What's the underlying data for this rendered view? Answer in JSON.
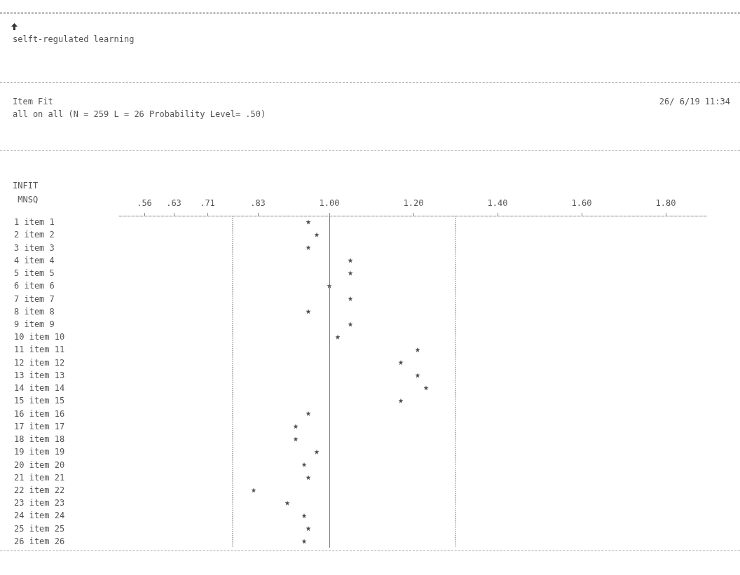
{
  "chart_data": {
    "type": "scatter",
    "title": "selft-regulated learning",
    "subtitle": "Item Fit",
    "annotations": [
      "all on all (N = 259 L = 26 Probability Level= .50)",
      "26/ 6/19 11:34"
    ],
    "xlabel": "INFIT MNSQ",
    "orientation": "horizontal",
    "categories": [
      "1 item 1",
      "2 item 2",
      "3 item 3",
      "4 item 4",
      "5 item 5",
      "6 item 6",
      "7 item 7",
      "8 item 8",
      "9 item 9",
      "10 item 10",
      "11 item 11",
      "12 item 12",
      "13 item 13",
      "14 item 14",
      "15 item 15",
      "16 item 16",
      "17 item 17",
      "18 item 18",
      "19 item 19",
      "20 item 20",
      "21 item 21",
      "22 item 22",
      "23 item 23",
      "24 item 24",
      "25 item 25",
      "26 item 26"
    ],
    "series": [
      {
        "color": "#222222",
        "values": [
          0.95,
          0.97,
          0.95,
          1.05,
          1.05,
          1.0,
          1.05,
          0.95,
          1.05,
          1.02,
          1.21,
          1.17,
          1.21,
          1.23,
          1.17,
          0.95,
          0.92,
          0.92,
          0.97,
          0.94,
          0.95,
          0.82,
          0.9,
          0.94,
          0.95,
          0.94
        ]
      }
    ],
    "xlim": [
      0.5,
      1.9
    ],
    "xticks": [
      {
        "value": 0.56,
        "label": ".56"
      },
      {
        "value": 0.63,
        "label": ".63"
      },
      {
        "value": 0.71,
        "label": ".71"
      },
      {
        "value": 0.83,
        "label": ".83"
      },
      {
        "value": 1.0,
        "label": "1.00"
      },
      {
        "value": 1.2,
        "label": "1.20"
      },
      {
        "value": 1.4,
        "label": "1.40"
      },
      {
        "value": 1.6,
        "label": "1.60"
      },
      {
        "value": 1.8,
        "label": "1.80"
      }
    ],
    "ref_lines": [
      {
        "axis": "x",
        "value": 0.77,
        "line_style": "dotted",
        "color": "#999999"
      },
      {
        "axis": "x",
        "value": 1.0,
        "line_style": "solid",
        "color": "#777777"
      },
      {
        "axis": "x",
        "value": 1.3,
        "line_style": "dotted",
        "color": "#999999"
      }
    ],
    "marker": "star",
    "grid": false
  }
}
